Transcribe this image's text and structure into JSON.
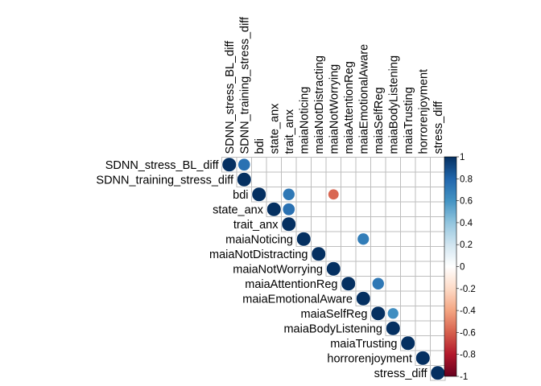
{
  "chart_data": {
    "type": "heatmap",
    "style": "corrplot-upper-circle",
    "variables": [
      "SDNN_stress_BL_diff",
      "SDNN_training_stress_diff",
      "bdi",
      "state_anx",
      "trait_anx",
      "maiaNoticing",
      "maiaNotDistracting",
      "maiaNotWorrying",
      "maiaAttentionReg",
      "maiaEmotionalAware",
      "maiaSelfReg",
      "maiaBodyListening",
      "maiaTrusting",
      "horrorenjoyment",
      "stress_diff"
    ],
    "cells": [
      {
        "row": 0,
        "col": 0,
        "value": 1.0
      },
      {
        "row": 0,
        "col": 1,
        "value": 0.75
      },
      {
        "row": 1,
        "col": 1,
        "value": 1.0
      },
      {
        "row": 2,
        "col": 2,
        "value": 1.0
      },
      {
        "row": 2,
        "col": 4,
        "value": 0.72
      },
      {
        "row": 2,
        "col": 7,
        "value": -0.58
      },
      {
        "row": 3,
        "col": 3,
        "value": 1.0
      },
      {
        "row": 3,
        "col": 4,
        "value": 0.75
      },
      {
        "row": 4,
        "col": 4,
        "value": 1.0
      },
      {
        "row": 5,
        "col": 5,
        "value": 1.0
      },
      {
        "row": 5,
        "col": 9,
        "value": 0.7
      },
      {
        "row": 6,
        "col": 6,
        "value": 1.0
      },
      {
        "row": 7,
        "col": 7,
        "value": 1.0
      },
      {
        "row": 8,
        "col": 8,
        "value": 1.0
      },
      {
        "row": 8,
        "col": 10,
        "value": 0.72
      },
      {
        "row": 9,
        "col": 9,
        "value": 1.0
      },
      {
        "row": 10,
        "col": 10,
        "value": 1.0
      },
      {
        "row": 10,
        "col": 11,
        "value": 0.62
      },
      {
        "row": 11,
        "col": 11,
        "value": 1.0
      },
      {
        "row": 12,
        "col": 12,
        "value": 1.0
      },
      {
        "row": 13,
        "col": 13,
        "value": 1.0
      },
      {
        "row": 14,
        "col": 14,
        "value": 1.0
      }
    ],
    "colorbar": {
      "range": [
        -1,
        1
      ],
      "ticks": [
        "1",
        "0.8",
        "0.6",
        "0.4",
        "0.2",
        "0",
        "-0.2",
        "-0.4",
        "-0.6",
        "-0.8",
        "-1"
      ]
    },
    "colors": {
      "negative_extreme": "#67001f",
      "neutral": "#ffffff",
      "positive_extreme": "#053061",
      "grid": "#bebebe"
    }
  }
}
